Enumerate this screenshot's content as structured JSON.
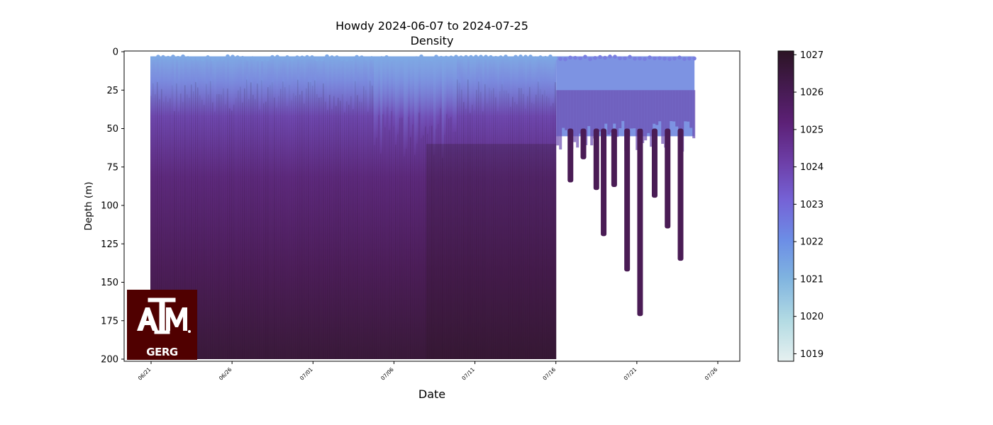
{
  "chart_data": {
    "type": "heatmap",
    "title": "Howdy 2024-06-07 to 2024-07-25",
    "subtitle": "Density",
    "xlabel": "Date",
    "ylabel": "Depth (m)",
    "x_ticks": [
      "06/21",
      "06/26",
      "07/01",
      "07/06",
      "07/11",
      "07/16",
      "07/21",
      "07/26"
    ],
    "y_ticks": [
      0,
      25,
      50,
      75,
      100,
      125,
      150,
      175,
      200
    ],
    "y_inverted": true,
    "ylim": [
      200,
      0
    ],
    "colorbar": {
      "ticks": [
        1019,
        1020,
        1021,
        1022,
        1023,
        1024,
        1025,
        1026,
        1027
      ],
      "range": [
        1018.8,
        1027.1
      ],
      "colormap": "dense"
    },
    "data_span": {
      "start": "06/21",
      "full_depth_end": "07/16",
      "end": "07/25"
    },
    "deep_profiles_after_full_depth": [
      {
        "date": "07/17",
        "max_depth": 85
      },
      {
        "date": "07/18",
        "max_depth": 70
      },
      {
        "date": "07/19",
        "max_depth": 90
      },
      {
        "date": "07/19",
        "max_depth": 120
      },
      {
        "date": "07/20",
        "max_depth": 88
      },
      {
        "date": "07/21",
        "max_depth": 143
      },
      {
        "date": "07/22",
        "max_depth": 172
      },
      {
        "date": "07/23",
        "max_depth": 95
      },
      {
        "date": "07/24",
        "max_depth": 115
      },
      {
        "date": "07/25",
        "max_depth": 136
      }
    ]
  },
  "logo": {
    "text": "GERG",
    "brand_color": "#500000"
  }
}
